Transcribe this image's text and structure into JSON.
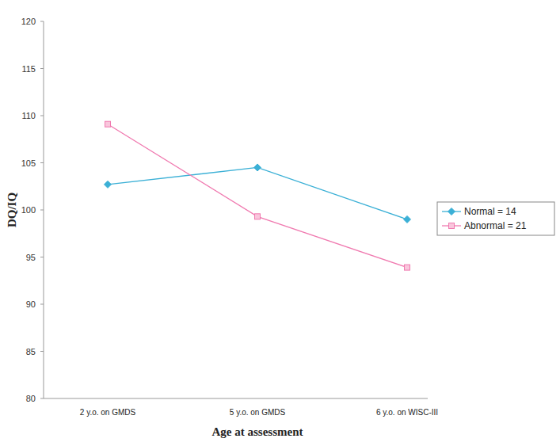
{
  "chart_data": {
    "type": "line",
    "y_label": "DQ/IQ",
    "x_label": "Age at assessment",
    "categories": [
      "2 y.o. on GMDS",
      "5 y.o. on GMDS",
      "6 y.o. on WISC-III"
    ],
    "series": [
      {
        "name": "Normal = 14",
        "color": "#3bb0d6",
        "marker": "diamond",
        "values": [
          102.7,
          104.5,
          99.0
        ]
      },
      {
        "name": "Abnormal = 21",
        "color": "#f07ab0",
        "marker": "square",
        "values": [
          109.1,
          99.3,
          93.9
        ]
      }
    ],
    "ylim": [
      80,
      120
    ],
    "yticks": [
      80,
      85,
      90,
      95,
      100,
      105,
      110,
      115,
      120
    ],
    "grid": false,
    "legend": "right"
  }
}
